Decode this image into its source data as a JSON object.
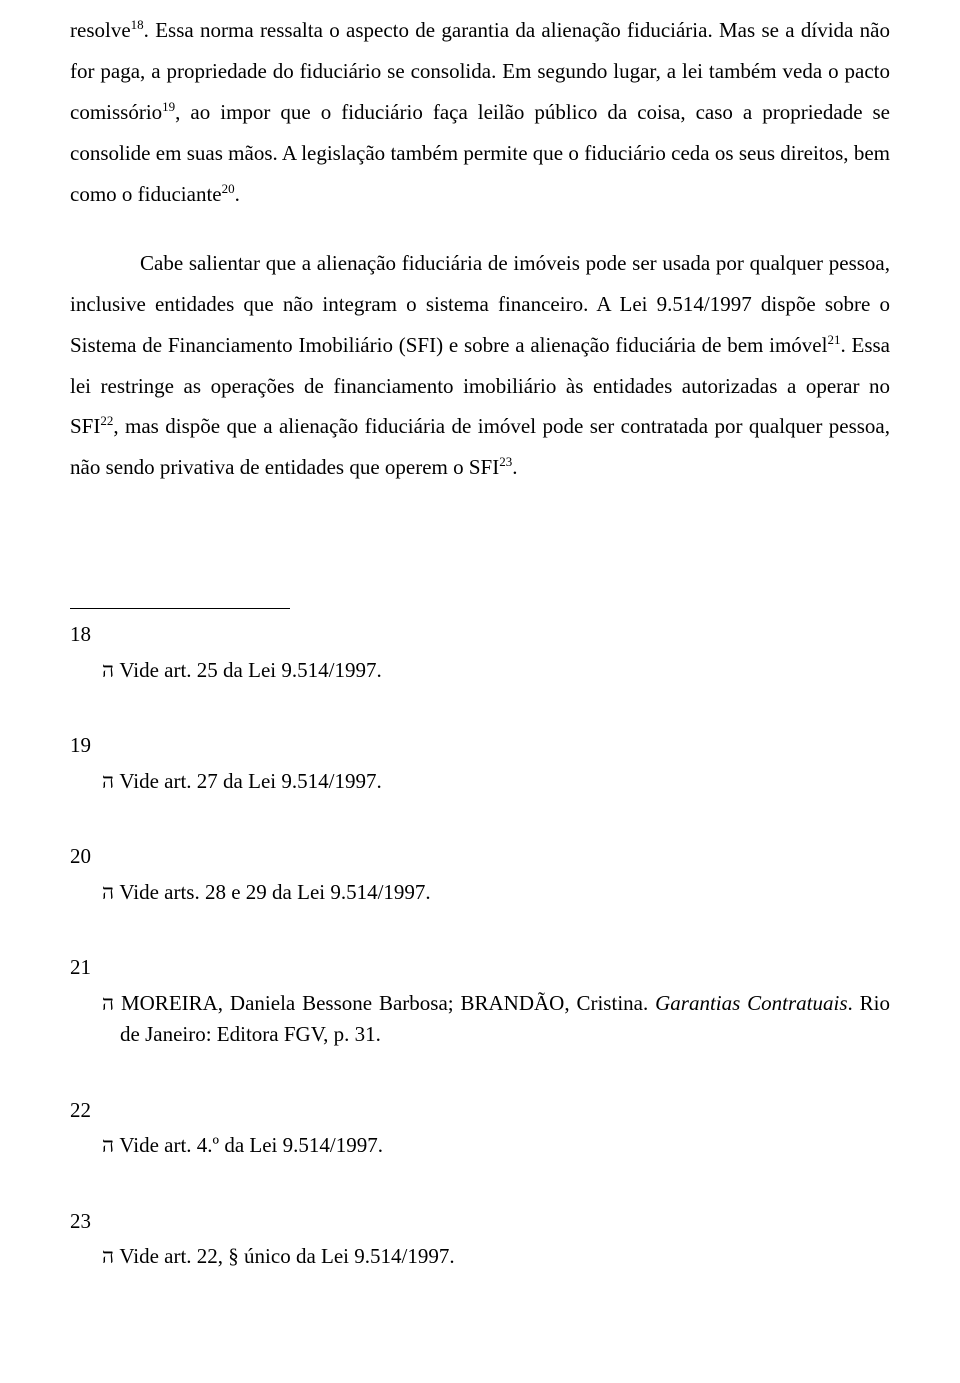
{
  "colors": {
    "background": "#ffffff",
    "text": "#000000",
    "divider": "#000000"
  },
  "typography": {
    "body_font": "Times New Roman",
    "body_size_pt": 16,
    "sup_size_pt": 10,
    "line_height": 1.95
  },
  "paragraphs": {
    "p1_a": "resolve",
    "p1_sup1": "18",
    "p1_b": ". Essa norma ressalta o aspecto de garantia da alienação fiduciária. Mas se a dívida não for paga, a propriedade do fiduciário se consolida. Em segundo lugar, a lei também veda o pacto comissório",
    "p1_sup2": "19",
    "p1_c": ", ao impor que o fiduciário faça leilão público da coisa, caso a propriedade se consolide em suas mãos. A legislação também permite que o fiduciário ceda os seus direitos, bem como o fiduciante",
    "p1_sup3": "20",
    "p1_d": ".",
    "p2_a": "Cabe salientar que a alienação fiduciária de imóveis pode ser usada por qualquer pessoa, inclusive entidades que não integram o sistema financeiro. A Lei 9.514/1997 dispõe sobre o Sistema de Financiamento Imobiliário (SFI) e sobre a alienação fiduciária de bem imóvel",
    "p2_sup1": "21",
    "p2_b": ". Essa lei restringe as operações de financiamento imobiliário às entidades autorizadas a operar no SFI",
    "p2_sup2": "22",
    "p2_c": ", mas dispõe que a alienação fiduciária de imóvel pode ser contratada por qualquer pessoa, não sendo privativa de entidades que operem o SFI",
    "p2_sup3": "23",
    "p2_d": "."
  },
  "footnotes": {
    "fn18_num": "18",
    "fn18_marker": "ה",
    "fn18_text": " Vide art. 25 da Lei 9.514/1997.",
    "fn19_num": "19",
    "fn19_marker": "ה",
    "fn19_text": " Vide art. 27 da Lei 9.514/1997.",
    "fn20_num": "20",
    "fn20_marker": "ה",
    "fn20_text": " Vide arts. 28 e 29 da Lei 9.514/1997.",
    "fn21_num": "21",
    "fn21_marker": "ה",
    "fn21_text_a": " MOREIRA, Daniela Bessone Barbosa; BRANDÃO, Cristina. ",
    "fn21_text_italic": "Garantias Contratuais",
    "fn21_text_b": ". Rio de Janeiro: Editora FGV, p. 31.",
    "fn22_num": "22",
    "fn22_marker": "ה",
    "fn22_text": " Vide art. 4.º da Lei 9.514/1997.",
    "fn23_num": "23",
    "fn23_marker": "ה",
    "fn23_text": " Vide art. 22, § único da Lei 9.514/1997."
  }
}
